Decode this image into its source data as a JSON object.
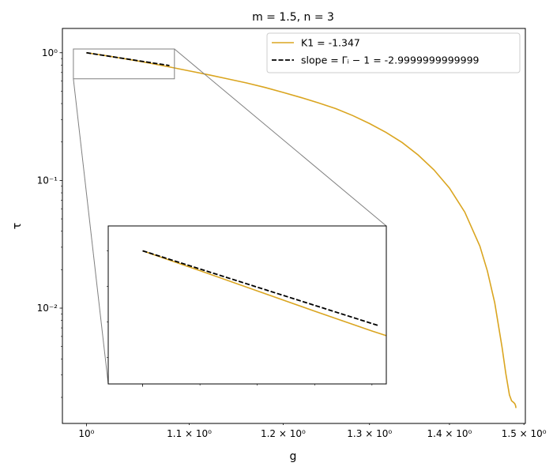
{
  "chart_data": {
    "type": "line",
    "title": "m = 1.5, n = 3",
    "xlabel": "g",
    "ylabel": "τ",
    "xscale": "log",
    "yscale": "log",
    "xlim": [
      0.978,
      1.502
    ],
    "ylim": [
      0.00125,
      1.55
    ],
    "xticks": [
      {
        "value": 1.0,
        "label": "10⁰",
        "major": true
      },
      {
        "value": 1.1,
        "label": "1.1 × 10⁰",
        "major": false
      },
      {
        "value": 1.2,
        "label": "1.2 × 10⁰",
        "major": false
      },
      {
        "value": 1.3,
        "label": "1.3 × 10⁰",
        "major": false
      },
      {
        "value": 1.4,
        "label": "1.4 × 10⁰",
        "major": false
      },
      {
        "value": 1.5,
        "label": "1.5 × 10⁰",
        "major": false
      }
    ],
    "yticks": [
      {
        "value": 1,
        "label": "10⁰"
      },
      {
        "value": 0.1,
        "label": "10⁻¹"
      },
      {
        "value": 0.01,
        "label": "10⁻²"
      }
    ],
    "legend_position": "top-right",
    "series": [
      {
        "name": "K1 = -1.347",
        "color": "#DAA520",
        "style": "solid",
        "x": [
          1.0,
          1.02,
          1.04,
          1.06,
          1.08,
          1.1,
          1.12,
          1.14,
          1.16,
          1.18,
          1.2,
          1.22,
          1.24,
          1.26,
          1.28,
          1.3,
          1.32,
          1.34,
          1.36,
          1.38,
          1.4,
          1.42,
          1.44,
          1.45,
          1.46,
          1.47,
          1.475,
          1.48,
          1.483,
          1.486,
          1.4875,
          1.4885,
          1.489
        ],
        "y": [
          1.0,
          0.944,
          0.887,
          0.83,
          0.774,
          0.721,
          0.672,
          0.624,
          0.58,
          0.535,
          0.489,
          0.446,
          0.405,
          0.365,
          0.322,
          0.279,
          0.238,
          0.198,
          0.158,
          0.121,
          0.0871,
          0.0565,
          0.0306,
          0.0196,
          0.011,
          0.0049,
          0.00309,
          0.00209,
          0.00188,
          0.00182,
          0.00178,
          0.00172,
          0.00165
        ]
      },
      {
        "name": "slope = Γᵢ − 1 =  -2.9999999999999",
        "color": "#000000",
        "style": "dashed",
        "x": [
          1.0,
          1.08
        ],
        "y": [
          1.0,
          0.794
        ]
      }
    ],
    "inset": {
      "xlim": [
        0.988,
        1.085
      ],
      "ylim": [
        0.625,
        1.07
      ],
      "x_major_ticks": [
        1.0
      ],
      "x_minor_ticks": [
        1.02,
        1.04,
        1.06,
        1.08
      ],
      "y_minor_ticks": [
        0.7,
        0.8,
        0.9,
        1.0
      ],
      "k1_x": [
        1.0,
        1.02,
        1.04,
        1.06,
        1.08,
        1.085
      ],
      "k1_y": [
        1.0,
        0.944,
        0.887,
        0.83,
        0.774,
        0.761
      ],
      "slope_x": [
        1.0,
        1.082
      ],
      "slope_y": [
        1.0,
        0.79
      ]
    }
  }
}
